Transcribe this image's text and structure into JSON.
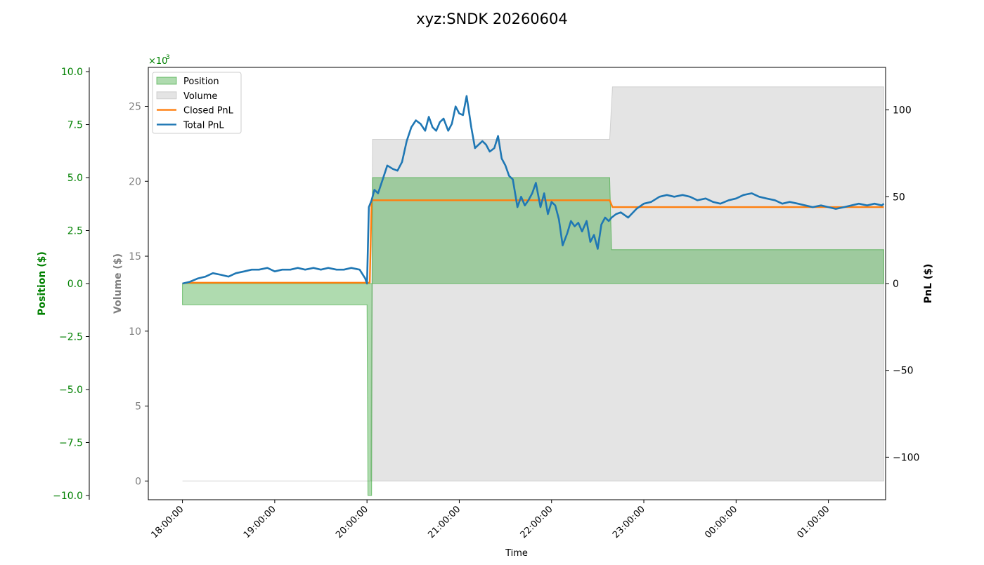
{
  "chart_data": {
    "type": "line",
    "title": "xyz:SNDK 20260604",
    "xlabel": "Time",
    "x_ticks": [
      "18:00:00",
      "19:00:00",
      "20:00:00",
      "21:00:00",
      "22:00:00",
      "23:00:00",
      "00:00:00",
      "01:00:00"
    ],
    "x_range_hours": [
      17.63,
      25.62
    ],
    "axes": {
      "position": {
        "label": "Position ($)",
        "color": "#008000",
        "ticks": [
          -10.0,
          -7.5,
          -5.0,
          -2.5,
          0.0,
          2.5,
          5.0,
          7.5,
          10.0
        ],
        "tick_labels": [
          "−10.0",
          "−7.5",
          "−5.0",
          "−2.5",
          "0.0",
          "2.5",
          "5.0",
          "7.5",
          "10.0"
        ],
        "ylim": [
          -10.2,
          10.2
        ]
      },
      "volume": {
        "label": "Volume ($)",
        "color": "#808080",
        "ticks": [
          0,
          5,
          10,
          15,
          20,
          25
        ],
        "tick_labels": [
          "0",
          "5",
          "10",
          "15",
          "20",
          "25"
        ],
        "multiplier_base": "×10",
        "multiplier_exp": "3",
        "ylim": [
          -1.25,
          27.6
        ]
      },
      "pnl": {
        "label": "PnL ($)",
        "color": "#000000",
        "ticks": [
          -100,
          -50,
          0,
          50,
          100
        ],
        "tick_labels": [
          "−100",
          "−50",
          "0",
          "50",
          "100"
        ],
        "ylim": [
          -124.5,
          124.5
        ]
      }
    },
    "legend": {
      "placement": "top-left",
      "entries": [
        {
          "label": "Position",
          "kind": "patch",
          "color": "#2ca02c"
        },
        {
          "label": "Volume",
          "kind": "patch",
          "color": "#bbbbbb"
        },
        {
          "label": "Closed PnL",
          "kind": "line",
          "color": "#ff7f0e"
        },
        {
          "label": "Total PnL",
          "kind": "line",
          "color": "#1f77b4"
        }
      ]
    },
    "series": [
      {
        "name": "Position",
        "axis": "position",
        "kind": "area",
        "color": "#2ca02c",
        "x": [
          18.0,
          18.01,
          20.0,
          20.01,
          20.05,
          20.06,
          22.63,
          22.65,
          25.6
        ],
        "values": [
          -1.0,
          -1.0,
          -1.0,
          -10.0,
          -10.0,
          5.0,
          5.0,
          1.6,
          1.6
        ]
      },
      {
        "name": "Volume",
        "axis": "volume",
        "kind": "area",
        "color": "#bbbbbb",
        "x": [
          18.0,
          20.0,
          20.04,
          20.06,
          22.63,
          22.66,
          25.6
        ],
        "values": [
          0,
          0,
          0,
          22.8,
          22.8,
          26.3,
          26.3
        ]
      },
      {
        "name": "Closed PnL",
        "axis": "pnl",
        "kind": "line",
        "color": "#ff7f0e",
        "x": [
          18.0,
          18.05,
          20.0,
          20.03,
          20.05,
          22.63,
          22.66,
          25.6
        ],
        "values": [
          0,
          0.5,
          0.5,
          0.5,
          48,
          48,
          44,
          44
        ]
      },
      {
        "name": "Total PnL",
        "axis": "pnl",
        "kind": "line",
        "color": "#1f77b4",
        "x": [
          18.0,
          18.08,
          18.17,
          18.25,
          18.33,
          18.42,
          18.5,
          18.58,
          18.67,
          18.75,
          18.83,
          18.92,
          19.0,
          19.08,
          19.17,
          19.25,
          19.33,
          19.42,
          19.5,
          19.58,
          19.67,
          19.75,
          19.83,
          19.92,
          19.98,
          20.0,
          20.02,
          20.05,
          20.08,
          20.12,
          20.17,
          20.22,
          20.28,
          20.33,
          20.38,
          20.43,
          20.48,
          20.53,
          20.58,
          20.63,
          20.67,
          20.71,
          20.75,
          20.79,
          20.83,
          20.88,
          20.92,
          20.96,
          21.0,
          21.04,
          21.08,
          21.13,
          21.17,
          21.21,
          21.25,
          21.29,
          21.33,
          21.38,
          21.42,
          21.46,
          21.5,
          21.54,
          21.58,
          21.63,
          21.67,
          21.71,
          21.75,
          21.79,
          21.83,
          21.88,
          21.92,
          21.96,
          22.0,
          22.04,
          22.08,
          22.12,
          22.17,
          22.21,
          22.25,
          22.29,
          22.33,
          22.38,
          22.42,
          22.46,
          22.5,
          22.54,
          22.58,
          22.62,
          22.65,
          22.7,
          22.75,
          22.83,
          22.92,
          23.0,
          23.08,
          23.17,
          23.25,
          23.33,
          23.42,
          23.5,
          23.58,
          23.67,
          23.75,
          23.83,
          23.92,
          24.0,
          24.08,
          24.17,
          24.25,
          24.33,
          24.42,
          24.5,
          24.58,
          24.67,
          24.75,
          24.83,
          24.92,
          25.0,
          25.08,
          25.17,
          25.25,
          25.33,
          25.42,
          25.5,
          25.58,
          25.6
        ],
        "values": [
          0,
          1,
          3,
          4,
          6,
          5,
          4,
          6,
          7,
          8,
          8,
          9,
          7,
          8,
          8,
          9,
          8,
          9,
          8,
          9,
          8,
          8,
          9,
          8,
          3,
          0,
          44,
          48,
          54,
          52,
          60,
          68,
          66,
          65,
          70,
          82,
          90,
          94,
          92,
          88,
          96,
          90,
          88,
          93,
          95,
          88,
          92,
          102,
          98,
          97,
          108,
          90,
          78,
          80,
          82,
          80,
          76,
          78,
          85,
          72,
          68,
          62,
          60,
          44,
          50,
          45,
          48,
          52,
          58,
          44,
          52,
          40,
          47,
          45,
          37,
          22,
          29,
          36,
          33,
          35,
          30,
          36,
          24,
          28,
          20,
          34,
          38,
          36,
          38,
          40,
          41,
          38,
          43,
          46,
          47,
          50,
          51,
          50,
          51,
          50,
          48,
          49,
          47,
          46,
          48,
          49,
          51,
          52,
          50,
          49,
          48,
          46,
          47,
          46,
          45,
          44,
          45,
          44,
          43,
          44,
          45,
          46,
          45,
          46,
          45,
          46
        ]
      }
    ]
  }
}
